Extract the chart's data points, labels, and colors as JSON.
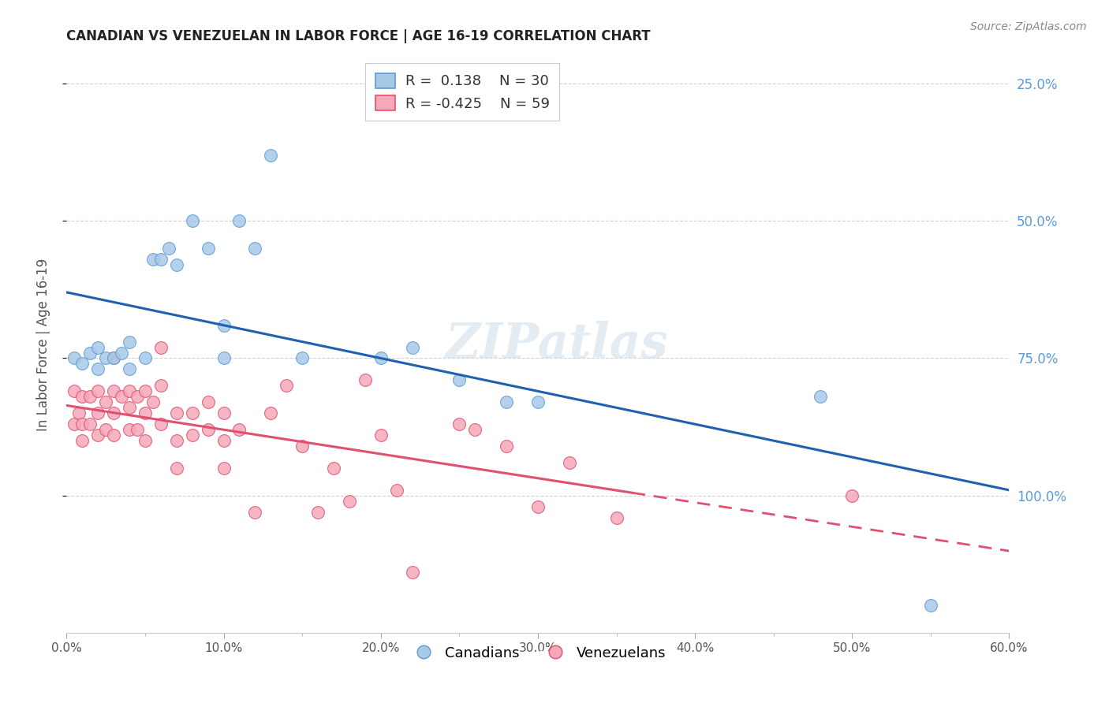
{
  "title": "CANADIAN VS VENEZUELAN IN LABOR FORCE | AGE 16-19 CORRELATION CHART",
  "source": "Source: ZipAtlas.com",
  "ylabel": "In Labor Force | Age 16-19",
  "xlim": [
    0.0,
    0.6
  ],
  "ylim": [
    0.0,
    1.05
  ],
  "xtick_labels": [
    "0.0%",
    "",
    "10.0%",
    "",
    "20.0%",
    "",
    "30.0%",
    "",
    "40.0%",
    "",
    "50.0%",
    "",
    "60.0%"
  ],
  "xtick_vals": [
    0.0,
    0.05,
    0.1,
    0.15,
    0.2,
    0.25,
    0.3,
    0.35,
    0.4,
    0.45,
    0.5,
    0.55,
    0.6
  ],
  "ytick_vals": [
    0.25,
    0.5,
    0.75,
    1.0
  ],
  "right_ytick_labels": [
    "100.0%",
    "75.0%",
    "50.0%",
    "25.0%"
  ],
  "right_ytick_color": "#5b9bd5",
  "canadian_color": "#a8c8e8",
  "canadian_edge_color": "#5b9bd5",
  "venezuelan_color": "#f4a8b8",
  "venezuelan_edge_color": "#e05070",
  "canadian_line_color": "#2060b0",
  "venezuelan_line_color": "#e05070",
  "canadian_R": 0.138,
  "canadian_N": 30,
  "venezuelan_R": -0.425,
  "venezuelan_N": 59,
  "watermark": "ZIPatlas",
  "background_color": "#ffffff",
  "grid_color": "#cccccc",
  "canadian_x": [
    0.005,
    0.01,
    0.015,
    0.02,
    0.02,
    0.025,
    0.03,
    0.035,
    0.04,
    0.04,
    0.05,
    0.055,
    0.06,
    0.065,
    0.07,
    0.08,
    0.09,
    0.1,
    0.1,
    0.11,
    0.12,
    0.13,
    0.15,
    0.2,
    0.22,
    0.25,
    0.28,
    0.3,
    0.48,
    0.55
  ],
  "canadian_y": [
    0.5,
    0.49,
    0.51,
    0.52,
    0.48,
    0.5,
    0.5,
    0.51,
    0.53,
    0.48,
    0.5,
    0.68,
    0.68,
    0.7,
    0.67,
    0.75,
    0.7,
    0.56,
    0.5,
    0.75,
    0.7,
    0.87,
    0.5,
    0.5,
    0.52,
    0.46,
    0.42,
    0.42,
    0.43,
    0.05
  ],
  "venezuelan_x": [
    0.005,
    0.005,
    0.008,
    0.01,
    0.01,
    0.01,
    0.015,
    0.015,
    0.02,
    0.02,
    0.02,
    0.025,
    0.025,
    0.03,
    0.03,
    0.03,
    0.03,
    0.035,
    0.04,
    0.04,
    0.04,
    0.045,
    0.045,
    0.05,
    0.05,
    0.05,
    0.055,
    0.06,
    0.06,
    0.06,
    0.07,
    0.07,
    0.07,
    0.08,
    0.08,
    0.09,
    0.09,
    0.1,
    0.1,
    0.1,
    0.11,
    0.12,
    0.13,
    0.14,
    0.15,
    0.16,
    0.17,
    0.18,
    0.19,
    0.2,
    0.21,
    0.22,
    0.25,
    0.26,
    0.28,
    0.3,
    0.32,
    0.35,
    0.5
  ],
  "venezuelan_y": [
    0.44,
    0.38,
    0.4,
    0.43,
    0.38,
    0.35,
    0.43,
    0.38,
    0.44,
    0.4,
    0.36,
    0.42,
    0.37,
    0.5,
    0.44,
    0.4,
    0.36,
    0.43,
    0.44,
    0.41,
    0.37,
    0.43,
    0.37,
    0.44,
    0.4,
    0.35,
    0.42,
    0.38,
    0.52,
    0.45,
    0.4,
    0.35,
    0.3,
    0.4,
    0.36,
    0.42,
    0.37,
    0.4,
    0.35,
    0.3,
    0.37,
    0.22,
    0.4,
    0.45,
    0.34,
    0.22,
    0.3,
    0.24,
    0.46,
    0.36,
    0.26,
    0.11,
    0.38,
    0.37,
    0.34,
    0.23,
    0.31,
    0.21,
    0.25
  ]
}
